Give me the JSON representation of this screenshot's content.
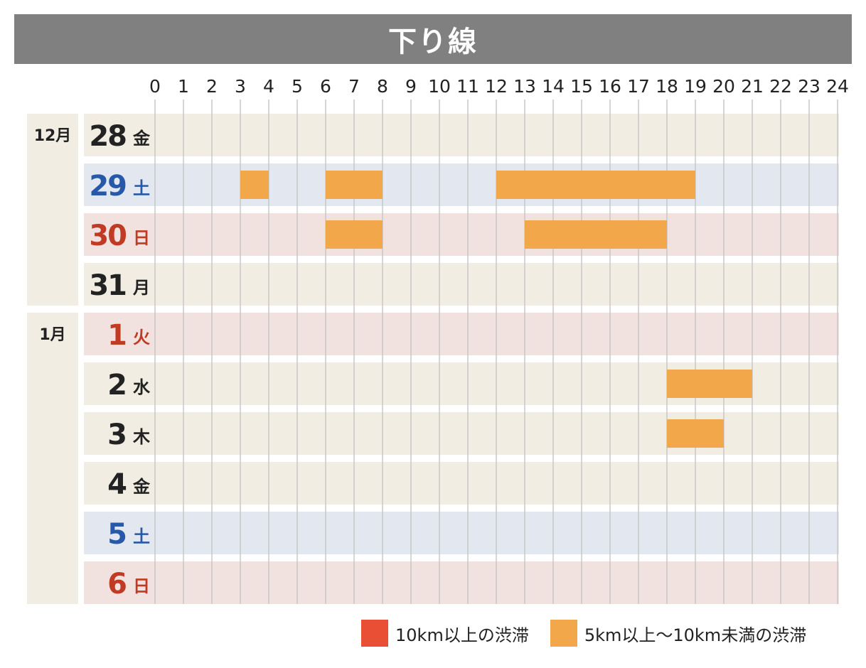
{
  "title": "下り線",
  "colors": {
    "title_bg": "#808080",
    "month_bg": "#f1ede2",
    "weekday_bg": "#f1ede2",
    "saturday_bg": "#e3e7ef",
    "holiday_bg": "#f2e2df",
    "weekday_text": "#222222",
    "saturday_text": "#2858a8",
    "holiday_text": "#c03a24",
    "gridline": "#c8c8c8",
    "heavy": "#e84f34",
    "moderate": "#f2a74a"
  },
  "chart_data": {
    "type": "gantt",
    "x_ticks": [
      "0",
      "1",
      "2",
      "3",
      "4",
      "5",
      "6",
      "7",
      "8",
      "9",
      "10",
      "11",
      "12",
      "13",
      "14",
      "15",
      "16",
      "17",
      "18",
      "19",
      "20",
      "21",
      "22",
      "23",
      "24"
    ],
    "xlim": [
      0,
      24
    ],
    "grid": true,
    "months": [
      {
        "label": "12月",
        "rows": 4
      },
      {
        "label": "1月",
        "rows": 6
      }
    ],
    "rows": [
      {
        "day": "28",
        "weekday": "金",
        "kind": "weekday",
        "segments": []
      },
      {
        "day": "29",
        "weekday": "土",
        "kind": "saturday",
        "segments": [
          {
            "start": 3,
            "end": 4,
            "level": "moderate"
          },
          {
            "start": 6,
            "end": 8,
            "level": "moderate"
          },
          {
            "start": 12,
            "end": 19,
            "level": "moderate"
          }
        ]
      },
      {
        "day": "30",
        "weekday": "日",
        "kind": "holiday",
        "segments": [
          {
            "start": 6,
            "end": 8,
            "level": "moderate"
          },
          {
            "start": 13,
            "end": 18,
            "level": "moderate"
          }
        ]
      },
      {
        "day": "31",
        "weekday": "月",
        "kind": "weekday",
        "segments": []
      },
      {
        "day": "1",
        "weekday": "火",
        "kind": "holiday",
        "segments": []
      },
      {
        "day": "2",
        "weekday": "水",
        "kind": "weekday",
        "segments": [
          {
            "start": 18,
            "end": 21,
            "level": "moderate"
          }
        ]
      },
      {
        "day": "3",
        "weekday": "木",
        "kind": "weekday",
        "segments": [
          {
            "start": 18,
            "end": 20,
            "level": "moderate"
          }
        ]
      },
      {
        "day": "4",
        "weekday": "金",
        "kind": "weekday",
        "segments": []
      },
      {
        "day": "5",
        "weekday": "土",
        "kind": "saturday",
        "segments": []
      },
      {
        "day": "6",
        "weekday": "日",
        "kind": "holiday",
        "segments": []
      }
    ],
    "legend": [
      {
        "key": "heavy",
        "label": "10km以上の渋滞"
      },
      {
        "key": "moderate",
        "label": "5km以上～10km未満の渋滞"
      }
    ],
    "legend_position": "bottom-right"
  }
}
